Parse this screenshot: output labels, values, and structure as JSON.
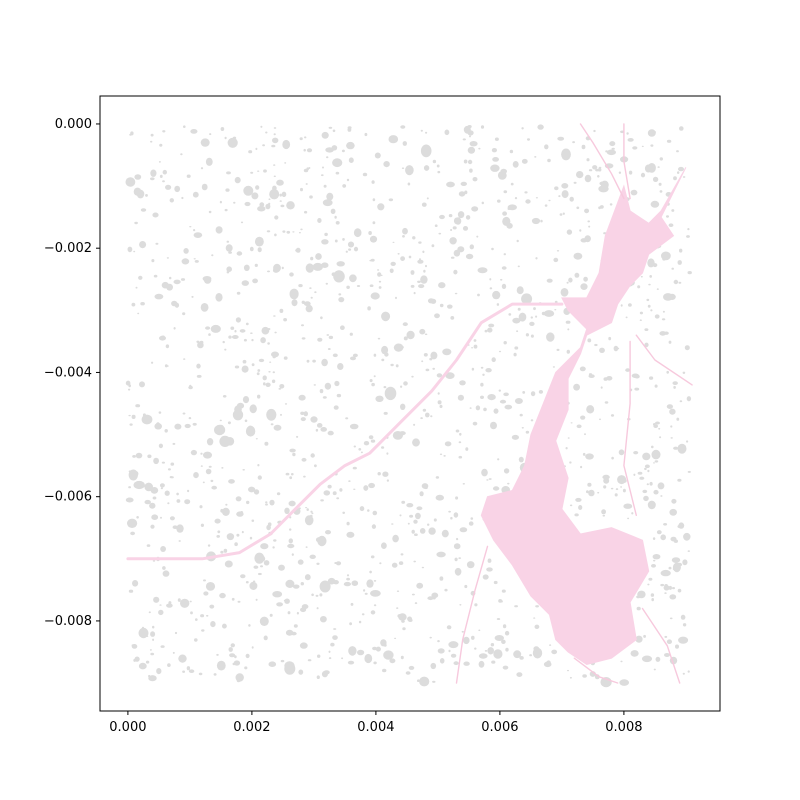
{
  "chart_data": {
    "type": "map",
    "title": "",
    "xlabel": "",
    "ylabel": "",
    "xlim": [
      -0.00045,
      0.00955
    ],
    "ylim": [
      -0.00945,
      0.00045
    ],
    "x_ticks": [
      {
        "value": 0.0,
        "label": "0.000"
      },
      {
        "value": 0.002,
        "label": "0.002"
      },
      {
        "value": 0.004,
        "label": "0.004"
      },
      {
        "value": 0.006,
        "label": "0.006"
      },
      {
        "value": 0.008,
        "label": "0.008"
      }
    ],
    "y_ticks": [
      {
        "value": 0.0,
        "label": "0.000"
      },
      {
        "value": -0.002,
        "label": "−0.002"
      },
      {
        "value": -0.004,
        "label": "−0.004"
      },
      {
        "value": -0.006,
        "label": "−0.006"
      },
      {
        "value": -0.008,
        "label": "−0.008"
      }
    ],
    "colors": {
      "water": "#f9d3e6",
      "water_line": "#f7c9dd",
      "buildings": "#dcdcdc",
      "axes": "#000000"
    },
    "layers": [
      {
        "name": "water-body",
        "polygon": [
          [
            0.008,
            -0.001
          ],
          [
            0.0081,
            -0.0014
          ],
          [
            0.0084,
            -0.0016
          ],
          [
            0.0086,
            -0.0014
          ],
          [
            0.009,
            -0.0007
          ],
          [
            0.0086,
            -0.0015
          ],
          [
            0.0088,
            -0.0018
          ],
          [
            0.0084,
            -0.0021
          ],
          [
            0.0083,
            -0.0024
          ],
          [
            0.0081,
            -0.0026
          ],
          [
            0.0079,
            -0.0029
          ],
          [
            0.0078,
            -0.0032
          ],
          [
            0.0074,
            -0.0034
          ],
          [
            0.0073,
            -0.0037
          ],
          [
            0.0071,
            -0.0041
          ],
          [
            0.0071,
            -0.0046
          ],
          [
            0.0069,
            -0.0051
          ],
          [
            0.0071,
            -0.0057
          ],
          [
            0.007,
            -0.0062
          ],
          [
            0.0073,
            -0.0066
          ],
          [
            0.0078,
            -0.0065
          ],
          [
            0.0083,
            -0.0067
          ],
          [
            0.0084,
            -0.0072
          ],
          [
            0.0081,
            -0.0077
          ],
          [
            0.0082,
            -0.0083
          ],
          [
            0.0078,
            -0.0086
          ],
          [
            0.0074,
            -0.0087
          ],
          [
            0.0071,
            -0.0085
          ],
          [
            0.0069,
            -0.0083
          ],
          [
            0.0068,
            -0.0079
          ],
          [
            0.0065,
            -0.0076
          ],
          [
            0.0062,
            -0.0071
          ],
          [
            0.0059,
            -0.0067
          ],
          [
            0.0057,
            -0.0063
          ],
          [
            0.0058,
            -0.006
          ],
          [
            0.0062,
            -0.0059
          ],
          [
            0.0064,
            -0.0055
          ],
          [
            0.0065,
            -0.005
          ],
          [
            0.0067,
            -0.0045
          ],
          [
            0.0069,
            -0.004
          ],
          [
            0.0073,
            -0.0036
          ],
          [
            0.0074,
            -0.0033
          ],
          [
            0.0071,
            -0.003
          ],
          [
            0.007,
            -0.0028
          ],
          [
            0.0074,
            -0.0028
          ],
          [
            0.0076,
            -0.0024
          ],
          [
            0.0077,
            -0.0018
          ],
          [
            0.008,
            -0.001
          ]
        ]
      },
      {
        "name": "river-west",
        "line": [
          [
            0.0,
            -0.007
          ],
          [
            0.0006,
            -0.007
          ],
          [
            0.0012,
            -0.007
          ],
          [
            0.0018,
            -0.0069
          ],
          [
            0.0023,
            -0.0066
          ],
          [
            0.0027,
            -0.0062
          ],
          [
            0.0031,
            -0.0058
          ],
          [
            0.0035,
            -0.0055
          ],
          [
            0.0039,
            -0.0053
          ],
          [
            0.0044,
            -0.0048
          ],
          [
            0.0049,
            -0.0043
          ],
          [
            0.0053,
            -0.0038
          ],
          [
            0.0057,
            -0.0032
          ],
          [
            0.0062,
            -0.0029
          ],
          [
            0.007,
            -0.0029
          ]
        ]
      },
      {
        "name": "stream-north",
        "line": [
          [
            0.0073,
            0.0
          ],
          [
            0.0075,
            -0.0003
          ],
          [
            0.0078,
            -0.0008
          ],
          [
            0.008,
            -0.0012
          ]
        ]
      },
      {
        "name": "stream-north-2",
        "line": [
          [
            0.008,
            0.0
          ],
          [
            0.008,
            -0.0006
          ],
          [
            0.0081,
            -0.0012
          ]
        ]
      },
      {
        "name": "stream-east",
        "line": [
          [
            0.0082,
            -0.0034
          ],
          [
            0.0085,
            -0.0038
          ],
          [
            0.0091,
            -0.0042
          ]
        ]
      },
      {
        "name": "stream-inner",
        "line": [
          [
            0.0081,
            -0.0035
          ],
          [
            0.0081,
            -0.0045
          ],
          [
            0.008,
            -0.0055
          ],
          [
            0.0082,
            -0.0063
          ]
        ]
      },
      {
        "name": "stream-southwest",
        "line": [
          [
            0.0058,
            -0.0068
          ],
          [
            0.0056,
            -0.0075
          ],
          [
            0.0054,
            -0.0083
          ],
          [
            0.0053,
            -0.009
          ]
        ]
      },
      {
        "name": "stream-southeast",
        "line": [
          [
            0.0083,
            -0.0078
          ],
          [
            0.0087,
            -0.0084
          ],
          [
            0.0089,
            -0.009
          ]
        ]
      },
      {
        "name": "stream-south",
        "line": [
          [
            0.0072,
            -0.0086
          ],
          [
            0.0076,
            -0.0089
          ],
          [
            0.0079,
            -0.009
          ]
        ]
      }
    ]
  }
}
